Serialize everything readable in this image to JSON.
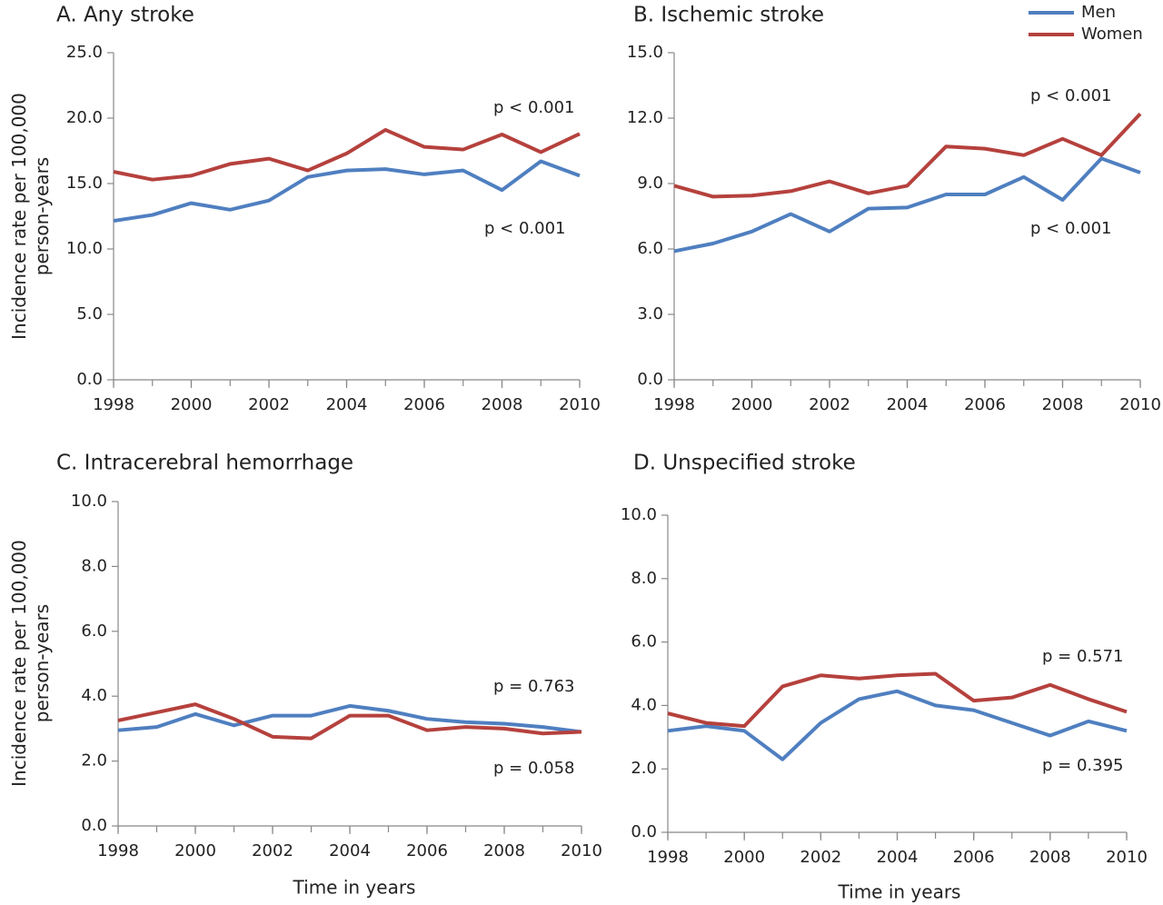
{
  "chart_data": [
    {
      "type": "line",
      "title": "A. Any stroke",
      "ylabel": [
        "Incidence rate per 100,000",
        "person-years"
      ],
      "x": [
        1998,
        1999,
        2000,
        2001,
        2002,
        2003,
        2004,
        2005,
        2006,
        2007,
        2008,
        2009,
        2010
      ],
      "xlim": [
        1998,
        2010
      ],
      "xticks": [
        1998,
        2000,
        2002,
        2004,
        2006,
        2008,
        2010
      ],
      "ylim": [
        0,
        25
      ],
      "yticks": [
        {
          "value": 0,
          "label": "0.0"
        },
        {
          "value": 5,
          "label": "5.0"
        },
        {
          "value": 10,
          "label": "10.0"
        },
        {
          "value": 15,
          "label": "15.0"
        },
        {
          "value": 20,
          "label": "20.0"
        },
        {
          "value": 25,
          "label": "25.0"
        }
      ],
      "series": [
        {
          "name": "Men",
          "color": "#4f7fc0",
          "values": [
            12.15,
            12.6,
            13.5,
            13.0,
            13.7,
            15.5,
            16.0,
            16.1,
            15.7,
            16.0,
            14.5,
            16.7,
            15.6
          ]
        },
        {
          "name": "Women",
          "color": "#b5413d",
          "values": [
            15.9,
            15.3,
            15.6,
            16.5,
            16.9,
            16.0,
            17.3,
            19.1,
            17.8,
            17.6,
            18.75,
            17.4,
            18.8
          ]
        }
      ],
      "annotations": [
        "p < 0.001",
        "p < 0.001"
      ]
    },
    {
      "type": "line",
      "title": "B. Ischemic stroke",
      "x": [
        1998,
        1999,
        2000,
        2001,
        2002,
        2003,
        2004,
        2005,
        2006,
        2007,
        2008,
        2009,
        2010
      ],
      "xlim": [
        1998,
        2010
      ],
      "xticks": [
        1998,
        2000,
        2002,
        2004,
        2006,
        2008,
        2010
      ],
      "ylim": [
        0,
        15
      ],
      "yticks": [
        {
          "value": 0,
          "label": "0.0"
        },
        {
          "value": 3,
          "label": "3.0"
        },
        {
          "value": 6,
          "label": "6.0"
        },
        {
          "value": 9,
          "label": "9.0"
        },
        {
          "value": 12,
          "label": "12.0"
        },
        {
          "value": 15,
          "label": "15.0"
        }
      ],
      "legend": "upper right",
      "series": [
        {
          "name": "Men",
          "color": "#4f7fc0",
          "values": [
            5.9,
            6.25,
            6.8,
            7.6,
            6.8,
            7.85,
            7.9,
            8.5,
            8.5,
            9.3,
            8.25,
            10.15,
            9.5
          ]
        },
        {
          "name": "Women",
          "color": "#b5413d",
          "values": [
            8.9,
            8.4,
            8.45,
            8.65,
            9.1,
            8.55,
            8.9,
            10.7,
            10.6,
            10.3,
            11.05,
            10.3,
            12.2
          ]
        }
      ],
      "annotations": [
        "p < 0.001",
        "p < 0.001"
      ]
    },
    {
      "type": "line",
      "title": "C. Intracerebral hemorrhage",
      "ylabel": [
        "Incidence rate per 100,000",
        "person-years"
      ],
      "xlabel": "Time in years",
      "x": [
        1998,
        1999,
        2000,
        2001,
        2002,
        2003,
        2004,
        2005,
        2006,
        2007,
        2008,
        2009,
        2010
      ],
      "xlim": [
        1998,
        2010
      ],
      "xticks": [
        1998,
        2000,
        2002,
        2004,
        2006,
        2008,
        2010
      ],
      "ylim": [
        0,
        10
      ],
      "yticks": [
        {
          "value": 0,
          "label": "0.0"
        },
        {
          "value": 2,
          "label": "2.0"
        },
        {
          "value": 4,
          "label": "4.0"
        },
        {
          "value": 6,
          "label": "6.0"
        },
        {
          "value": 8,
          "label": "8.0"
        },
        {
          "value": 10,
          "label": "10.0"
        }
      ],
      "series": [
        {
          "name": "Men",
          "color": "#4f7fc0",
          "values": [
            2.95,
            3.05,
            3.45,
            3.1,
            3.4,
            3.4,
            3.7,
            3.55,
            3.3,
            3.2,
            3.15,
            3.05,
            2.9
          ]
        },
        {
          "name": "Women",
          "color": "#b5413d",
          "values": [
            3.25,
            3.5,
            3.75,
            3.3,
            2.75,
            2.7,
            3.4,
            3.4,
            2.95,
            3.05,
            3.0,
            2.85,
            2.9
          ]
        }
      ],
      "annotations": [
        "p = 0.763",
        "p = 0.058"
      ]
    },
    {
      "type": "line",
      "title": "D. Unspecified stroke",
      "xlabel": "Time in years",
      "x": [
        1998,
        1999,
        2000,
        2001,
        2002,
        2003,
        2004,
        2005,
        2006,
        2007,
        2008,
        2009,
        2010
      ],
      "xlim": [
        1998,
        2010
      ],
      "xticks": [
        1998,
        2000,
        2002,
        2004,
        2006,
        2008,
        2010
      ],
      "ylim": [
        0,
        10
      ],
      "yticks": [
        {
          "value": 0,
          "label": "0.0"
        },
        {
          "value": 2,
          "label": "2.0"
        },
        {
          "value": 4,
          "label": "4.0"
        },
        {
          "value": 6,
          "label": "6.0"
        },
        {
          "value": 8,
          "label": "8.0"
        },
        {
          "value": 10,
          "label": "10.0"
        }
      ],
      "series": [
        {
          "name": "Men",
          "color": "#4f7fc0",
          "values": [
            3.2,
            3.35,
            3.2,
            2.3,
            3.45,
            4.2,
            4.45,
            4.0,
            3.85,
            3.45,
            3.05,
            3.5,
            3.2
          ]
        },
        {
          "name": "Women",
          "color": "#b5413d",
          "values": [
            3.75,
            3.45,
            3.35,
            4.6,
            4.95,
            4.85,
            4.95,
            5.0,
            4.15,
            4.25,
            4.65,
            4.2,
            3.8
          ]
        }
      ],
      "annotations": [
        "p = 0.571",
        "p = 0.395"
      ]
    }
  ]
}
